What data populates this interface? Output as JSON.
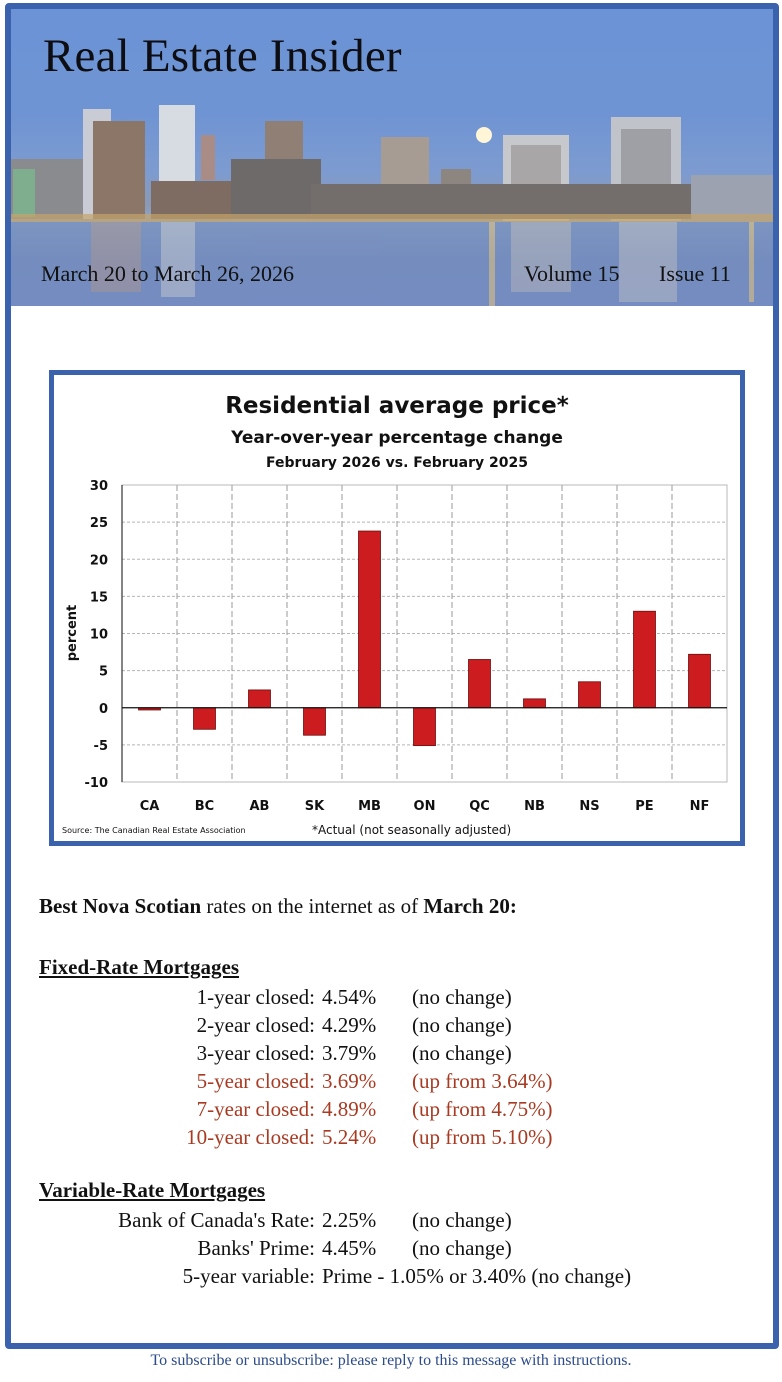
{
  "header": {
    "title": "Real Estate Insider",
    "date_range": "March 20 to March 26, 2026",
    "volume": "Volume 15",
    "issue": "Issue 11"
  },
  "colors": {
    "frame_border": "#3b62ad",
    "bar_fill": "#cc1c1f",
    "rate_increase_text": "#a83a22",
    "footer_text": "#2b4a8a"
  },
  "chart_data": {
    "type": "bar",
    "title": "Residential average price*",
    "subtitle": "Year-over-year percentage change",
    "subtitle2": "February 2026 vs. February 2025",
    "xlabel": "",
    "ylabel": "percent",
    "ylim": [
      -10,
      30
    ],
    "yticks": [
      30,
      25,
      20,
      15,
      10,
      5,
      0,
      -5,
      -10
    ],
    "grid": true,
    "categories": [
      "CA",
      "BC",
      "AB",
      "SK",
      "MB",
      "ON",
      "QC",
      "NB",
      "NS",
      "PE",
      "NF"
    ],
    "values": [
      -0.3,
      -2.9,
      2.4,
      -3.7,
      23.8,
      -5.1,
      6.5,
      1.2,
      3.5,
      13.0,
      7.2
    ],
    "source": "Source: The Canadian Real Estate Association",
    "footnote": "*Actual (not seasonally adjusted)"
  },
  "rates": {
    "intro_bold1": "Best Nova Scotian",
    "intro_mid": " rates on the internet as of ",
    "intro_bold2": "March 20:",
    "fixed": {
      "heading": "Fixed-Rate Mortgages",
      "rows": [
        {
          "label": "1-year closed:",
          "value": "4.54%",
          "change": "(no change)"
        },
        {
          "label": "2-year closed:",
          "value": "4.29%",
          "change": "(no change)"
        },
        {
          "label": "3-year closed:",
          "value": "3.79%",
          "change": "(no change)"
        },
        {
          "label": "5-year closed:",
          "value": "3.69%",
          "change": "(up from 3.64%)"
        },
        {
          "label": "7-year closed:",
          "value": "4.89%",
          "change": "(up from 4.75%)"
        },
        {
          "label": "10-year closed:",
          "value": "5.24%",
          "change": "(up from 5.10%)"
        }
      ]
    },
    "variable": {
      "heading": "Variable-Rate Mortgages",
      "rows": [
        {
          "label": "Bank of Canada's Rate:",
          "value": "2.25%",
          "change": "(no change)"
        },
        {
          "label": "Banks' Prime:",
          "value": "4.45%",
          "change": "(no change)"
        },
        {
          "label": "5-year variable:",
          "value": "Prime - 1.05% or 3.40% (no change)",
          "change": ""
        }
      ]
    }
  },
  "footer": {
    "text": "To subscribe or unsubscribe: please reply to this message with instructions."
  }
}
